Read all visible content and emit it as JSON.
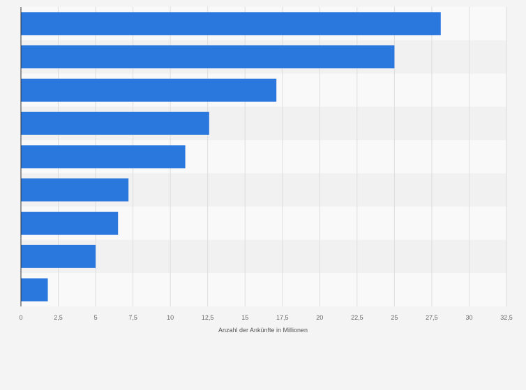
{
  "chart_data": {
    "type": "bar",
    "orientation": "horizontal",
    "categories": [
      "",
      "",
      "",
      "",
      "",
      "",
      "",
      "",
      ""
    ],
    "values": [
      28.1,
      25.0,
      17.1,
      12.6,
      11.0,
      7.2,
      6.5,
      5.0,
      1.8
    ],
    "xlabel": "Anzahl der Ankünfte in Millionen",
    "ylabel": "",
    "xlim": [
      0,
      32.5
    ],
    "x_ticks": [
      "0",
      "2,5",
      "5",
      "7,5",
      "10",
      "12,5",
      "15",
      "17,5",
      "20",
      "22,5",
      "25",
      "27,5",
      "30",
      "32,5"
    ],
    "grid": "vertical",
    "legend": "none",
    "colors": {
      "bar": "#2a77dd",
      "background": "#f4f4f4",
      "band_light": "#f9f9f9",
      "band_dark": "#f1f1f1",
      "grid": "#dddddd",
      "axis": "#333333"
    }
  }
}
